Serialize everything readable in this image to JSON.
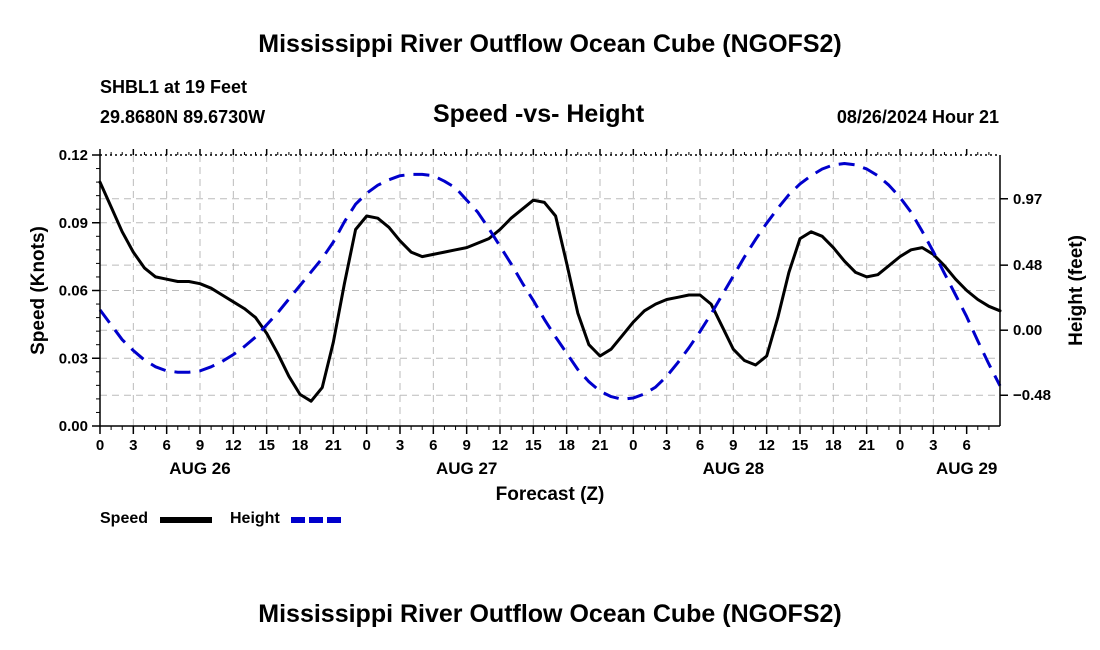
{
  "header": {
    "title": "Mississippi River Outflow Ocean Cube (NGOFS2)",
    "station": "SHBL1 at 19 Feet",
    "coords": "29.8680N  89.6730W",
    "subtitle": "Speed -vs- Height",
    "datetime": "08/26/2024 Hour 21"
  },
  "footer": {
    "title": "Mississippi River Outflow Ocean Cube (NGOFS2)"
  },
  "legend": {
    "speed_label": "Speed",
    "height_label": "Height",
    "speed_color": "#000000",
    "height_color": "#0000cc"
  },
  "chart_data": {
    "type": "line",
    "title": "Speed -vs- Height",
    "xlabel": "Forecast (Z)",
    "ylabel": "Speed (Knots)",
    "y2label": "Height (feet)",
    "xlim": [
      0,
      81
    ],
    "ylim": [
      0,
      0.12
    ],
    "y2lim": [
      -0.707,
      1.293
    ],
    "yticks": [
      "0.00",
      "0.03",
      "0.06",
      "0.09",
      "0.12"
    ],
    "y2ticks": [
      {
        "value": -0.48,
        "label": "−0.48"
      },
      {
        "value": 0.0,
        "label": "0.00"
      },
      {
        "value": 0.48,
        "label": "0.48"
      },
      {
        "value": 0.97,
        "label": "0.97"
      }
    ],
    "xticks": [
      "0",
      "3",
      "6",
      "9",
      "12",
      "15",
      "18",
      "21",
      "0",
      "3",
      "6",
      "9",
      "12",
      "15",
      "18",
      "21",
      "0",
      "3",
      "6",
      "9",
      "12",
      "15",
      "18",
      "21",
      "0",
      "3",
      "6"
    ],
    "date_labels": [
      {
        "hour": 9,
        "label": "AUG 26"
      },
      {
        "hour": 33,
        "label": "AUG 27"
      },
      {
        "hour": 57,
        "label": "AUG 28"
      },
      {
        "hour": 78,
        "label": "AUG 29"
      }
    ],
    "series": [
      {
        "name": "Speed",
        "axis": "left",
        "color": "#000000",
        "style": "solid",
        "x": [
          0,
          1,
          2,
          3,
          4,
          5,
          6,
          7,
          8,
          9,
          10,
          11,
          12,
          13,
          14,
          15,
          16,
          17,
          18,
          19,
          20,
          21,
          22,
          23,
          24,
          25,
          26,
          27,
          28,
          29,
          30,
          31,
          32,
          33,
          34,
          35,
          36,
          37,
          38,
          39,
          40,
          41,
          42,
          43,
          44,
          45,
          46,
          47,
          48,
          49,
          50,
          51,
          52,
          53,
          54,
          55,
          56,
          57,
          58,
          59,
          60,
          61,
          62,
          63,
          64,
          65,
          66,
          67,
          68,
          69,
          70,
          71,
          72,
          73,
          74,
          75,
          76,
          77,
          78,
          79,
          80,
          81
        ],
        "values": [
          0.108,
          0.097,
          0.086,
          0.077,
          0.07,
          0.066,
          0.065,
          0.064,
          0.064,
          0.063,
          0.061,
          0.058,
          0.055,
          0.052,
          0.048,
          0.041,
          0.032,
          0.022,
          0.014,
          0.011,
          0.017,
          0.037,
          0.063,
          0.087,
          0.093,
          0.092,
          0.088,
          0.082,
          0.077,
          0.075,
          0.076,
          0.077,
          0.078,
          0.079,
          0.081,
          0.083,
          0.087,
          0.092,
          0.096,
          0.1,
          0.099,
          0.093,
          0.072,
          0.05,
          0.036,
          0.031,
          0.034,
          0.04,
          0.046,
          0.051,
          0.054,
          0.056,
          0.057,
          0.058,
          0.058,
          0.054,
          0.044,
          0.034,
          0.029,
          0.027,
          0.031,
          0.048,
          0.068,
          0.083,
          0.086,
          0.084,
          0.079,
          0.073,
          0.068,
          0.066,
          0.067,
          0.071,
          0.075,
          0.078,
          0.079,
          0.076,
          0.071,
          0.065,
          0.06,
          0.056,
          0.053,
          0.051
        ]
      },
      {
        "name": "Height",
        "axis": "right",
        "color": "#0000cc",
        "style": "dashed",
        "x": [
          0,
          1,
          2,
          3,
          4,
          5,
          6,
          7,
          8,
          9,
          10,
          11,
          12,
          13,
          14,
          15,
          16,
          17,
          18,
          19,
          20,
          21,
          22,
          23,
          24,
          25,
          26,
          27,
          28,
          29,
          30,
          31,
          32,
          33,
          34,
          35,
          36,
          37,
          38,
          39,
          40,
          41,
          42,
          43,
          44,
          45,
          46,
          47,
          48,
          49,
          50,
          51,
          52,
          53,
          54,
          55,
          56,
          57,
          58,
          59,
          60,
          61,
          62,
          63,
          64,
          65,
          66,
          67,
          68,
          69,
          70,
          71,
          72,
          73,
          74,
          75,
          76,
          77,
          78,
          79,
          80,
          81
        ],
        "values": [
          0.15,
          0.04,
          -0.07,
          -0.15,
          -0.22,
          -0.27,
          -0.3,
          -0.31,
          -0.31,
          -0.3,
          -0.27,
          -0.23,
          -0.18,
          -0.12,
          -0.05,
          0.04,
          0.13,
          0.23,
          0.33,
          0.43,
          0.53,
          0.65,
          0.8,
          0.93,
          1.01,
          1.07,
          1.11,
          1.14,
          1.15,
          1.15,
          1.14,
          1.1,
          1.05,
          0.96,
          0.87,
          0.75,
          0.62,
          0.49,
          0.35,
          0.22,
          0.08,
          -0.05,
          -0.17,
          -0.29,
          -0.38,
          -0.45,
          -0.49,
          -0.51,
          -0.5,
          -0.47,
          -0.42,
          -0.34,
          -0.24,
          -0.13,
          -0.01,
          0.12,
          0.26,
          0.4,
          0.54,
          0.67,
          0.79,
          0.9,
          1.0,
          1.08,
          1.14,
          1.19,
          1.22,
          1.23,
          1.22,
          1.19,
          1.14,
          1.07,
          0.98,
          0.87,
          0.73,
          0.58,
          0.42,
          0.26,
          0.1,
          -0.08,
          -0.25,
          -0.41
        ]
      }
    ]
  }
}
